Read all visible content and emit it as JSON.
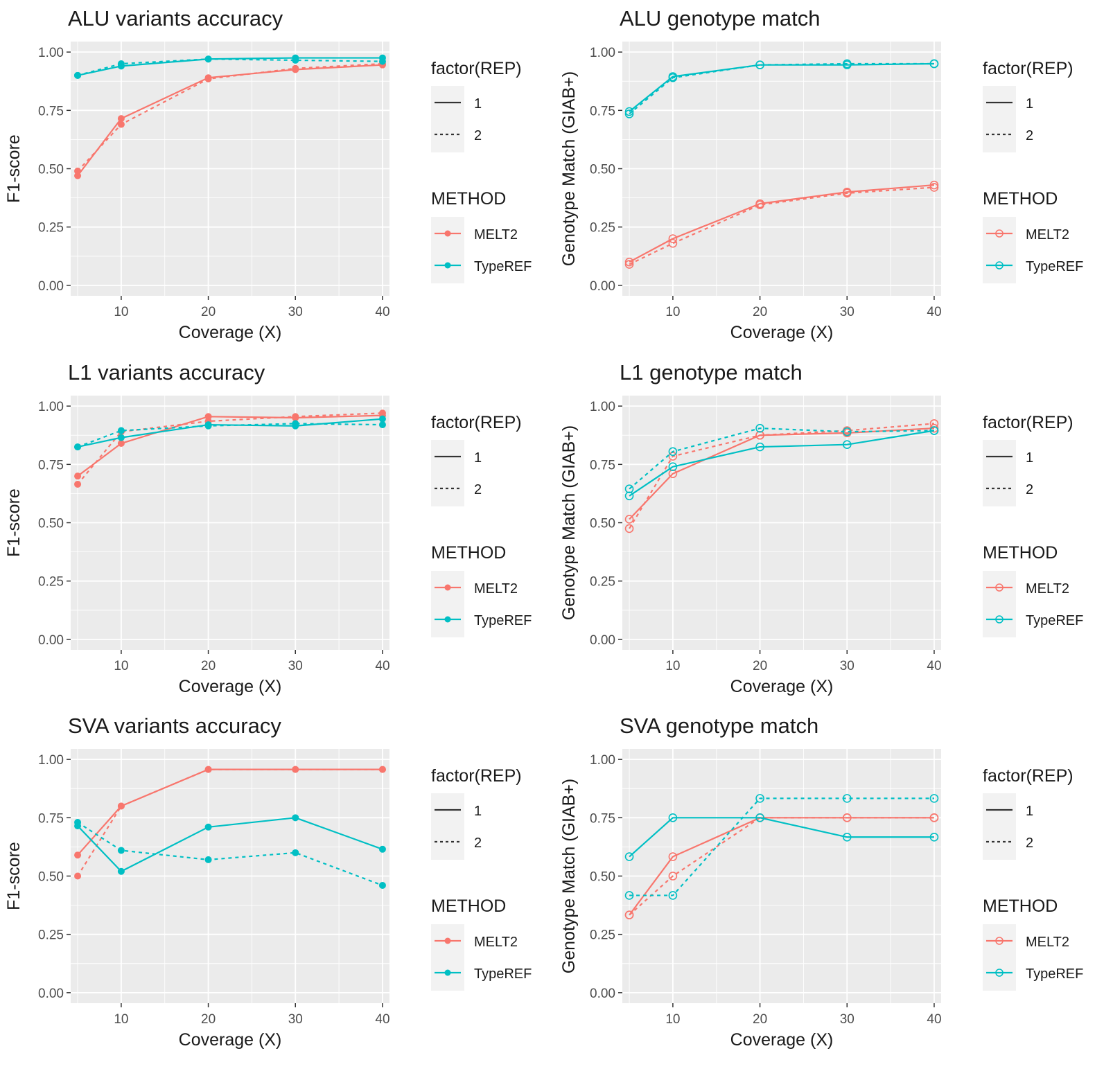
{
  "colors": {
    "MELT2": "#F8766D",
    "TypeREF": "#00BFC4",
    "panel_bg": "#EBEBEB",
    "legend_key_bg": "#F2F2F2"
  },
  "chart_data": [
    {
      "type": "line",
      "title": "ALU variants accuracy",
      "xlabel": "Coverage (X)",
      "ylabel": "F1-score",
      "x": [
        5,
        10,
        20,
        30,
        40
      ],
      "xlim": [
        4.2,
        40.8
      ],
      "ylim": [
        -0.045,
        1.045
      ],
      "xticks": [
        10,
        20,
        30,
        40
      ],
      "yticks": [
        0,
        0.25,
        0.5,
        0.75,
        1.0
      ],
      "ytick_labels": [
        "0.00",
        "0.25",
        "0.50",
        "0.75",
        "1.00"
      ],
      "marker": "filled",
      "grid": true,
      "series": [
        {
          "method": "MELT2",
          "rep": "1",
          "values": [
            0.47,
            0.715,
            0.89,
            0.925,
            0.945
          ]
        },
        {
          "method": "MELT2",
          "rep": "2",
          "values": [
            0.49,
            0.69,
            0.885,
            0.93,
            0.95
          ]
        },
        {
          "method": "TypeREF",
          "rep": "1",
          "values": [
            0.9,
            0.94,
            0.97,
            0.975,
            0.975
          ]
        },
        {
          "method": "TypeREF",
          "rep": "2",
          "values": [
            0.9,
            0.95,
            0.97,
            0.965,
            0.96
          ]
        }
      ]
    },
    {
      "type": "line",
      "title": "ALU genotype match",
      "xlabel": "Coverage (X)",
      "ylabel": "Genotype Match (GIAB+)",
      "x": [
        5,
        10,
        20,
        30,
        40
      ],
      "xlim": [
        4.2,
        40.8
      ],
      "ylim": [
        -0.045,
        1.045
      ],
      "xticks": [
        10,
        20,
        30,
        40
      ],
      "yticks": [
        0,
        0.25,
        0.5,
        0.75,
        1.0
      ],
      "ytick_labels": [
        "0.00",
        "0.25",
        "0.50",
        "0.75",
        "1.00"
      ],
      "marker": "hollow",
      "grid": true,
      "series": [
        {
          "method": "MELT2",
          "rep": "1",
          "values": [
            0.1,
            0.2,
            0.35,
            0.4,
            0.43
          ]
        },
        {
          "method": "MELT2",
          "rep": "2",
          "values": [
            0.09,
            0.18,
            0.345,
            0.395,
            0.42
          ]
        },
        {
          "method": "TypeREF",
          "rep": "1",
          "values": [
            0.745,
            0.895,
            0.945,
            0.945,
            0.95
          ]
        },
        {
          "method": "TypeREF",
          "rep": "2",
          "values": [
            0.735,
            0.89,
            0.945,
            0.95,
            0.95
          ]
        }
      ]
    },
    {
      "type": "line",
      "title": "L1 variants accuracy",
      "xlabel": "Coverage (X)",
      "ylabel": "F1-score",
      "x": [
        5,
        10,
        20,
        30,
        40
      ],
      "xlim": [
        4.2,
        40.8
      ],
      "ylim": [
        -0.045,
        1.045
      ],
      "xticks": [
        10,
        20,
        30,
        40
      ],
      "yticks": [
        0,
        0.25,
        0.5,
        0.75,
        1.0
      ],
      "ytick_labels": [
        "0.00",
        "0.25",
        "0.50",
        "0.75",
        "1.00"
      ],
      "marker": "filled",
      "grid": true,
      "series": [
        {
          "method": "MELT2",
          "rep": "1",
          "values": [
            0.7,
            0.84,
            0.955,
            0.95,
            0.96
          ]
        },
        {
          "method": "MELT2",
          "rep": "2",
          "values": [
            0.665,
            0.89,
            0.935,
            0.955,
            0.97
          ]
        },
        {
          "method": "TypeREF",
          "rep": "1",
          "values": [
            0.825,
            0.865,
            0.92,
            0.915,
            0.945
          ]
        },
        {
          "method": "TypeREF",
          "rep": "2",
          "values": [
            0.825,
            0.895,
            0.915,
            0.925,
            0.92
          ]
        }
      ]
    },
    {
      "type": "line",
      "title": "L1 genotype match",
      "xlabel": "Coverage (X)",
      "ylabel": "Genotype Match (GIAB+)",
      "x": [
        5,
        10,
        20,
        30,
        40
      ],
      "xlim": [
        4.2,
        40.8
      ],
      "ylim": [
        -0.045,
        1.045
      ],
      "xticks": [
        10,
        20,
        30,
        40
      ],
      "yticks": [
        0,
        0.25,
        0.5,
        0.75,
        1.0
      ],
      "ytick_labels": [
        "0.00",
        "0.25",
        "0.50",
        "0.75",
        "1.00"
      ],
      "marker": "hollow",
      "grid": true,
      "series": [
        {
          "method": "MELT2",
          "rep": "1",
          "values": [
            0.515,
            0.71,
            0.875,
            0.885,
            0.905
          ]
        },
        {
          "method": "MELT2",
          "rep": "2",
          "values": [
            0.475,
            0.785,
            0.875,
            0.895,
            0.925
          ]
        },
        {
          "method": "TypeREF",
          "rep": "1",
          "values": [
            0.615,
            0.74,
            0.825,
            0.835,
            0.895
          ]
        },
        {
          "method": "TypeREF",
          "rep": "2",
          "values": [
            0.645,
            0.805,
            0.905,
            0.89,
            0.895
          ]
        }
      ]
    },
    {
      "type": "line",
      "title": "SVA variants accuracy",
      "xlabel": "Coverage (X)",
      "ylabel": "F1-score",
      "x": [
        5,
        10,
        20,
        30,
        40
      ],
      "xlim": [
        4.2,
        40.8
      ],
      "ylim": [
        -0.045,
        1.045
      ],
      "xticks": [
        10,
        20,
        30,
        40
      ],
      "yticks": [
        0,
        0.25,
        0.5,
        0.75,
        1.0
      ],
      "ytick_labels": [
        "0.00",
        "0.25",
        "0.50",
        "0.75",
        "1.00"
      ],
      "marker": "filled",
      "grid": true,
      "series": [
        {
          "method": "MELT2",
          "rep": "1",
          "values": [
            0.59,
            0.8,
            0.957,
            0.957,
            0.957
          ]
        },
        {
          "method": "MELT2",
          "rep": "2",
          "values": [
            0.5,
            0.8,
            0.957,
            0.957,
            0.957
          ]
        },
        {
          "method": "TypeREF",
          "rep": "1",
          "values": [
            0.715,
            0.52,
            0.71,
            0.75,
            0.615
          ]
        },
        {
          "method": "TypeREF",
          "rep": "2",
          "values": [
            0.73,
            0.61,
            0.57,
            0.6,
            0.46
          ]
        }
      ]
    },
    {
      "type": "line",
      "title": "SVA genotype match",
      "xlabel": "Coverage (X)",
      "ylabel": "Genotype Match (GIAB+)",
      "x": [
        5,
        10,
        20,
        30,
        40
      ],
      "xlim": [
        4.2,
        40.8
      ],
      "ylim": [
        -0.045,
        1.045
      ],
      "xticks": [
        10,
        20,
        30,
        40
      ],
      "yticks": [
        0,
        0.25,
        0.5,
        0.75,
        1.0
      ],
      "ytick_labels": [
        "0.00",
        "0.25",
        "0.50",
        "0.75",
        "1.00"
      ],
      "marker": "hollow",
      "grid": true,
      "series": [
        {
          "method": "MELT2",
          "rep": "1",
          "values": [
            0.333,
            0.583,
            0.75,
            0.75,
            0.75
          ]
        },
        {
          "method": "MELT2",
          "rep": "2",
          "values": [
            0.333,
            0.5,
            0.75,
            0.75,
            0.75
          ]
        },
        {
          "method": "TypeREF",
          "rep": "1",
          "values": [
            0.583,
            0.75,
            0.75,
            0.667,
            0.667
          ]
        },
        {
          "method": "TypeREF",
          "rep": "2",
          "values": [
            0.417,
            0.417,
            0.833,
            0.833,
            0.833
          ]
        }
      ]
    }
  ],
  "legend": {
    "rep_title": "factor(REP)",
    "rep_items": [
      {
        "label": "1",
        "dash": "solid"
      },
      {
        "label": "2",
        "dash": "dashed"
      }
    ],
    "method_title": "METHOD",
    "method_items": [
      {
        "label": "MELT2",
        "color": "#F8766D"
      },
      {
        "label": "TypeREF",
        "color": "#00BFC4"
      }
    ]
  }
}
